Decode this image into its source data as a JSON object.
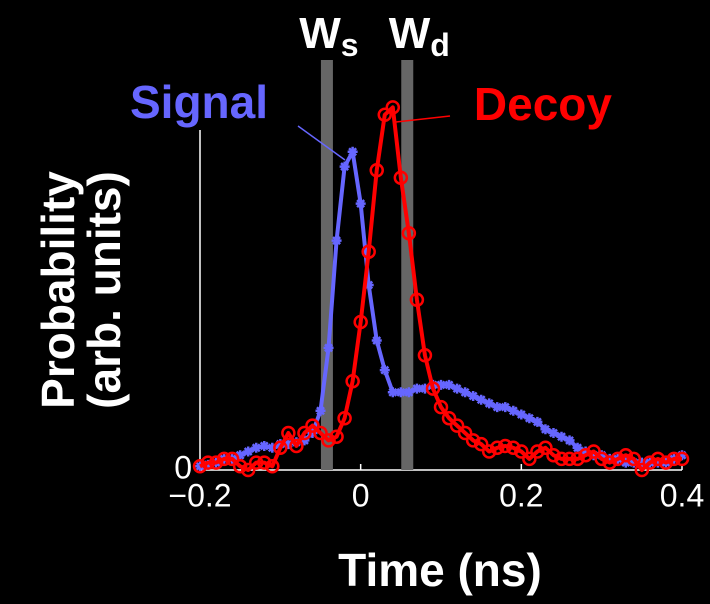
{
  "chart_data": {
    "type": "line",
    "xlabel": "Time (ns)",
    "ylabel": [
      "Probability",
      "(arb. units)"
    ],
    "x": [
      -0.2,
      -0.19,
      -0.18,
      -0.17,
      -0.16,
      -0.15,
      -0.14,
      -0.13,
      -0.12,
      -0.11,
      -0.1,
      -0.09,
      -0.08,
      -0.07,
      -0.06,
      -0.05,
      -0.04,
      -0.03,
      -0.02,
      -0.01,
      0,
      0.01,
      0.02,
      0.03,
      0.04,
      0.05,
      0.06,
      0.07,
      0.08,
      0.09,
      0.1,
      0.11,
      0.12,
      0.13,
      0.14,
      0.15,
      0.16,
      0.17,
      0.18,
      0.19,
      0.2,
      0.21,
      0.22,
      0.23,
      0.24,
      0.25,
      0.26,
      0.27,
      0.28,
      0.29,
      0.3,
      0.31,
      0.32,
      0.33,
      0.34,
      0.35,
      0.36,
      0.37,
      0.38,
      0.39,
      0.4
    ],
    "series": [
      {
        "name": "Signal",
        "color": "#6666ff",
        "marker": "star",
        "values": [
          0.01,
          0.014,
          0.02,
          0.03,
          0.03,
          0.04,
          0.05,
          0.06,
          0.065,
          0.06,
          0.07,
          0.07,
          0.075,
          0.08,
          0.1,
          0.16,
          0.33,
          0.62,
          0.82,
          0.86,
          0.72,
          0.5,
          0.35,
          0.27,
          0.21,
          0.21,
          0.21,
          0.22,
          0.22,
          0.23,
          0.23,
          0.23,
          0.22,
          0.21,
          0.2,
          0.19,
          0.18,
          0.17,
          0.17,
          0.16,
          0.15,
          0.14,
          0.13,
          0.11,
          0.1,
          0.09,
          0.08,
          0.06,
          0.05,
          0.04,
          0.04,
          0.03,
          0.03,
          0.02,
          0.02,
          0.02,
          0.02,
          0.02,
          0.02,
          0.03,
          0.04
        ]
      },
      {
        "name": "Decoy",
        "color": "#ff0000",
        "marker": "circle",
        "values": [
          0.01,
          0.02,
          0.02,
          0.03,
          0.03,
          0.01,
          0,
          0.02,
          0.02,
          0.01,
          0.06,
          0.1,
          0.065,
          0.1,
          0.12,
          0.1,
          0.08,
          0.09,
          0.14,
          0.24,
          0.4,
          0.59,
          0.81,
          0.96,
          0.98,
          0.79,
          0.64,
          0.46,
          0.31,
          0.22,
          0.17,
          0.14,
          0.12,
          0.1,
          0.08,
          0.07,
          0.05,
          0.06,
          0.065,
          0.06,
          0.05,
          0.03,
          0.05,
          0.06,
          0.04,
          0.03,
          0.03,
          0.03,
          0.04,
          0.05,
          0.03,
          0.02,
          0.03,
          0.04,
          0.03,
          0,
          0.02,
          0.03,
          0.02,
          0.03,
          0.03
        ]
      }
    ],
    "windows": [
      {
        "label": "W",
        "sub": "s",
        "x": -0.042,
        "color": "#666666"
      },
      {
        "label": "W",
        "sub": "d",
        "x": 0.058,
        "color": "#666666"
      }
    ],
    "xlim": [
      -0.2,
      0.4
    ],
    "xticks": [
      {
        "value": -0.2,
        "label": "−0.2"
      },
      0,
      0.2,
      0.4
    ],
    "ylim": [
      0,
      1
    ],
    "yticks": [
      0
    ]
  }
}
